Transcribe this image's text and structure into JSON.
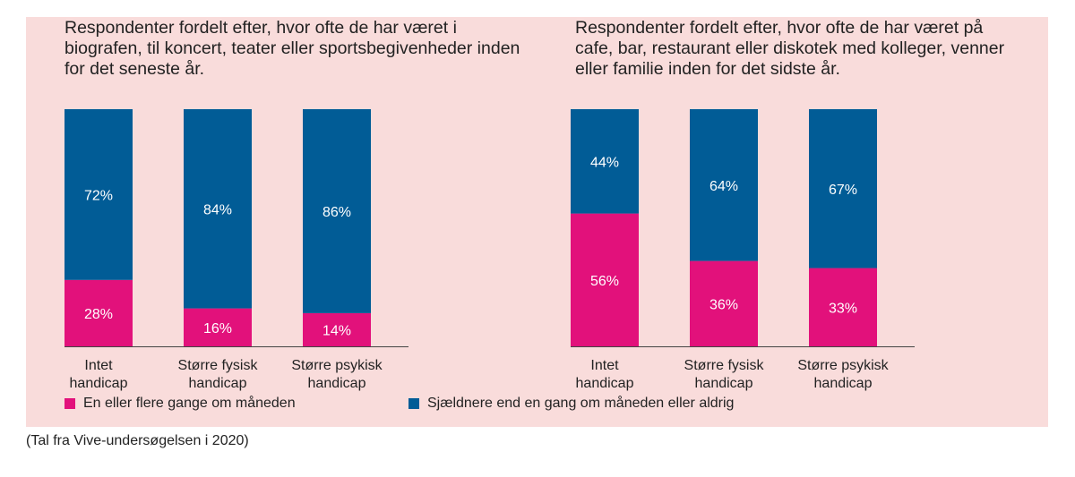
{
  "colors": {
    "frequent": "#e2117b",
    "rare": "#015c96",
    "background": "#f9dcdb",
    "axis": "#444444"
  },
  "legend": {
    "frequent": "En eller flere gange om måneden",
    "rare": "Sjældnere end en gang om måneden eller aldrig"
  },
  "footnote": "(Tal fra Vive-undersøgelsen i 2020)",
  "chart_data": [
    {
      "type": "bar",
      "stacked": true,
      "title": "Respondenter fordelt efter, hvor ofte de har været i biografen, til koncert, teater eller sportsbegivenheder inden for det seneste år.",
      "categories": [
        [
          "Intet",
          "handicap"
        ],
        [
          "Større fysisk",
          "handicap"
        ],
        [
          "Større psykisk",
          "handicap"
        ]
      ],
      "series": [
        {
          "name": "En eller flere gange om måneden",
          "key": "frequent",
          "values": [
            28,
            16,
            14
          ],
          "labels": [
            "28%",
            "16%",
            "14%"
          ]
        },
        {
          "name": "Sjældnere end en gang om måneden eller aldrig",
          "key": "rare",
          "values": [
            72,
            84,
            86
          ],
          "labels": [
            "72%",
            "84%",
            "86%"
          ]
        }
      ],
      "ylim": [
        0,
        100
      ]
    },
    {
      "type": "bar",
      "stacked": true,
      "title": "Respondenter fordelt efter, hvor ofte de har været på cafe, bar, restaurant eller diskotek med kolleger, venner eller familie inden for det sidste år.",
      "categories": [
        [
          "Intet",
          "handicap"
        ],
        [
          "Større fysisk",
          "handicap"
        ],
        [
          "Større psykisk",
          "handicap"
        ]
      ],
      "series": [
        {
          "name": "En eller flere gange om måneden",
          "key": "frequent",
          "values": [
            56,
            36,
            33
          ],
          "labels": [
            "56%",
            "36%",
            "33%"
          ]
        },
        {
          "name": "Sjældnere end en gang om måneden eller aldrig",
          "key": "rare",
          "values": [
            44,
            64,
            67
          ],
          "labels": [
            "44%",
            "64%",
            "67%"
          ]
        }
      ],
      "ylim": [
        0,
        100
      ]
    }
  ]
}
